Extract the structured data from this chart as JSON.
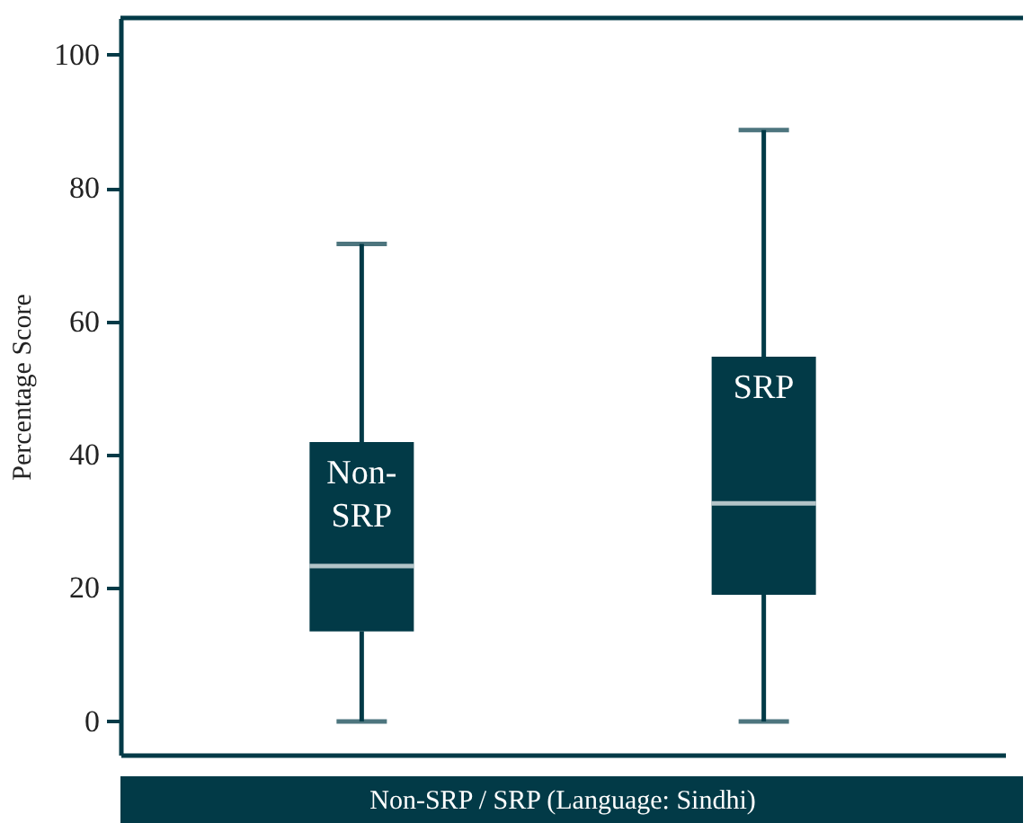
{
  "chart_data": {
    "type": "box",
    "categories": [
      "Non-SRP",
      "SRP"
    ],
    "xlabel": "Non-SRP / SRP (Language: Sindhi)",
    "ylabel": "Percentage Score",
    "ylim": [
      -5,
      105.5
    ],
    "yticks": [
      0,
      20,
      40,
      60,
      80,
      100
    ],
    "tick_labels": "y",
    "grid": false,
    "color": "#023a47",
    "boxes": [
      {
        "low": 0,
        "q1": 13.5,
        "median": 23.3,
        "q3": 41.9,
        "high": 71.6
      },
      {
        "low": 0,
        "q1": 19.0,
        "median": 32.7,
        "q3": 54.7,
        "high": 88.7
      }
    ]
  }
}
